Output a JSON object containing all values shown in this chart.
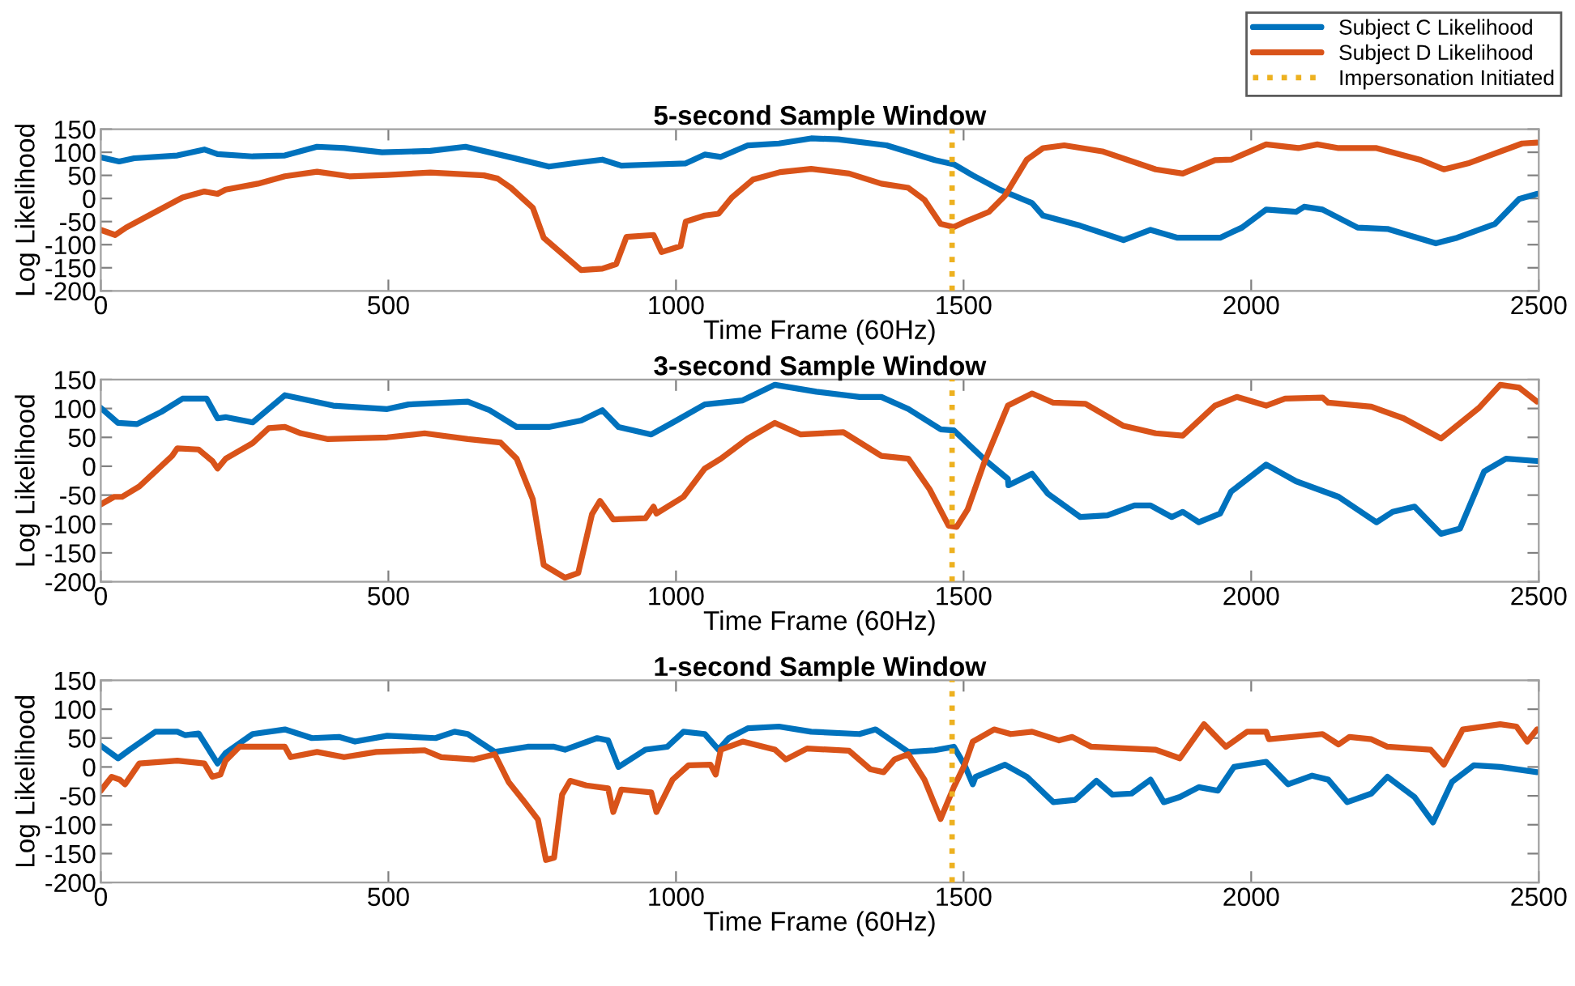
{
  "chart_data": [
    {
      "type": "line",
      "title": "5-second Sample Window",
      "xlabel": "Time Frame (60Hz)",
      "ylabel": "Log Likelihood",
      "xlim": [
        0,
        2500
      ],
      "xticks": [
        0,
        500,
        1000,
        1500,
        2000,
        2500
      ],
      "ylim": [
        -200,
        150
      ],
      "yticks": [
        -200,
        -150,
        -100,
        -50,
        0,
        50,
        100,
        150
      ],
      "grid": false,
      "legend": "top right",
      "marker": "none",
      "line_style": "solid",
      "ref_lines": [
        {
          "axis": "x",
          "value": 1480,
          "label": "Impersonation Initiated",
          "color": "#edb120",
          "line_style": "dotted"
        }
      ],
      "series": [
        {
          "name": "Subject C Likelihood",
          "color": "#0072bd",
          "x": [
            0,
            32,
            58,
            133,
            180,
            203,
            264,
            320,
            376,
            423,
            489,
            573,
            634,
            713,
            779,
            826,
            872,
            905,
            947,
            1017,
            1050,
            1078,
            1125,
            1179,
            1235,
            1282,
            1366,
            1450,
            1483,
            1516,
            1563,
            1619,
            1638,
            1703,
            1778,
            1825,
            1872,
            1946,
            1984,
            2026,
            2078,
            2092,
            2124,
            2185,
            2237,
            2321,
            2358,
            2424,
            2466,
            2497
          ],
          "values": [
            89,
            80,
            87,
            93,
            106,
            96,
            91,
            93,
            112,
            109,
            100,
            103,
            112,
            89,
            69,
            77,
            84,
            71,
            73,
            76,
            95,
            90,
            115,
            119,
            130,
            128,
            115,
            83,
            74,
            50,
            19,
            -10,
            -37,
            -59,
            -90,
            -68,
            -85,
            -85,
            -63,
            -24,
            -29,
            -18,
            -24,
            -63,
            -66,
            -97,
            -85,
            -55,
            -1,
            10
          ]
        },
        {
          "name": "Subject D Likelihood",
          "color": "#d95319",
          "x": [
            0,
            25,
            44,
            95,
            142,
            180,
            203,
            217,
            273,
            320,
            376,
            432,
            498,
            573,
            666,
            690,
            713,
            751,
            770,
            835,
            872,
            896,
            914,
            961,
            975,
            1008,
            1017,
            1050,
            1074,
            1097,
            1134,
            1181,
            1235,
            1301,
            1357,
            1404,
            1432,
            1460,
            1483,
            1507,
            1544,
            1572,
            1610,
            1638,
            1675,
            1741,
            1834,
            1881,
            1937,
            1965,
            2026,
            2082,
            2115,
            2152,
            2218,
            2293,
            2335,
            2377,
            2471,
            2497
          ],
          "values": [
            -68,
            -79,
            -63,
            -29,
            2,
            15,
            10,
            19,
            32,
            48,
            58,
            48,
            51,
            56,
            50,
            43,
            23,
            -20,
            -85,
            -155,
            -152,
            -142,
            -83,
            -79,
            -116,
            -103,
            -50,
            -37,
            -33,
            2,
            41,
            57,
            64,
            54,
            32,
            23,
            -3,
            -55,
            -62,
            -48,
            -29,
            6,
            84,
            109,
            115,
            102,
            63,
            54,
            83,
            84,
            117,
            109,
            117,
            109,
            109,
            84,
            63,
            76,
            119,
            121
          ]
        }
      ]
    },
    {
      "type": "line",
      "title": "3-second Sample Window",
      "xlabel": "Time Frame (60Hz)",
      "ylabel": "Log Likelihood",
      "xlim": [
        0,
        2500
      ],
      "xticks": [
        0,
        500,
        1000,
        1500,
        2000,
        2500
      ],
      "ylim": [
        -200,
        150
      ],
      "yticks": [
        -200,
        -150,
        -100,
        -50,
        0,
        50,
        100,
        150
      ],
      "grid": false,
      "marker": "none",
      "line_style": "solid",
      "ref_lines": [
        {
          "axis": "x",
          "value": 1480,
          "color": "#edb120",
          "line_style": "dotted"
        }
      ],
      "series": [
        {
          "color": "#0072bd",
          "x": [
            0,
            30,
            63,
            105,
            142,
            184,
            203,
            217,
            264,
            320,
            348,
            404,
            498,
            535,
            638,
            676,
            723,
            779,
            835,
            872,
            900,
            957,
            995,
            1050,
            1116,
            1172,
            1244,
            1319,
            1357,
            1404,
            1460,
            1483,
            1535,
            1577,
            1578,
            1619,
            1647,
            1703,
            1750,
            1797,
            1825,
            1862,
            1881,
            1909,
            1946,
            1965,
            2026,
            2078,
            2152,
            2218,
            2246,
            2284,
            2330,
            2363,
            2405,
            2443,
            2497
          ],
          "values": [
            101,
            75,
            73,
            94,
            117,
            117,
            83,
            85,
            76,
            123,
            117,
            105,
            99,
            107,
            112,
            97,
            68,
            68,
            79,
            97,
            68,
            55,
            76,
            107,
            114,
            141,
            129,
            120,
            120,
            99,
            64,
            62,
            13,
            -22,
            -33,
            -13,
            -48,
            -88,
            -85,
            -68,
            -68,
            -88,
            -79,
            -97,
            -82,
            -44,
            3,
            -26,
            -53,
            -97,
            -79,
            -70,
            -117,
            -108,
            -9,
            13,
            9
          ]
        },
        {
          "color": "#d95319",
          "x": [
            0,
            23,
            37,
            67,
            95,
            124,
            133,
            170,
            194,
            203,
            217,
            264,
            292,
            320,
            348,
            395,
            498,
            563,
            638,
            695,
            723,
            751,
            770,
            807,
            830,
            854,
            868,
            891,
            947,
            961,
            966,
            1013,
            1050,
            1078,
            1125,
            1172,
            1217,
            1291,
            1357,
            1404,
            1441,
            1474,
            1488,
            1507,
            1535,
            1577,
            1619,
            1656,
            1712,
            1778,
            1834,
            1881,
            1937,
            1975,
            2026,
            2059,
            2124,
            2134,
            2209,
            2265,
            2330,
            2396,
            2433,
            2466,
            2497
          ],
          "values": [
            -66,
            -53,
            -53,
            -35,
            -9,
            18,
            31,
            29,
            9,
            -4,
            13,
            40,
            66,
            68,
            57,
            47,
            50,
            57,
            47,
            41,
            13,
            -57,
            -171,
            -193,
            -185,
            -83,
            -60,
            -92,
            -90,
            -70,
            -82,
            -53,
            -4,
            13,
            48,
            75,
            55,
            59,
            18,
            13,
            -40,
            -103,
            -105,
            -75,
            4,
            105,
            126,
            110,
            108,
            70,
            57,
            53,
            105,
            120,
            105,
            117,
            119,
            110,
            103,
            83,
            48,
            101,
            141,
            136,
            112
          ]
        }
      ]
    },
    {
      "type": "line",
      "title": "1-second Sample Window",
      "xlabel": "Time Frame (60Hz)",
      "ylabel": "Log Likelihood",
      "xlim": [
        0,
        2500
      ],
      "xticks": [
        0,
        500,
        1000,
        1500,
        2000,
        2500
      ],
      "ylim": [
        -200,
        150
      ],
      "yticks": [
        -200,
        -150,
        -100,
        -50,
        0,
        50,
        100,
        150
      ],
      "grid": false,
      "marker": "none",
      "line_style": "solid",
      "ref_lines": [
        {
          "axis": "x",
          "value": 1480,
          "color": "#edb120",
          "line_style": "dotted"
        }
      ],
      "series": [
        {
          "color": "#0072bd",
          "x": [
            0,
            30,
            49,
            95,
            133,
            147,
            170,
            203,
            217,
            264,
            320,
            367,
            414,
            442,
            498,
            582,
            615,
            638,
            685,
            742,
            788,
            807,
            863,
            882,
            900,
            947,
            985,
            1013,
            1050,
            1074,
            1092,
            1125,
            1179,
            1235,
            1319,
            1347,
            1404,
            1450,
            1483,
            1502,
            1516,
            1521,
            1572,
            1610,
            1656,
            1694,
            1731,
            1759,
            1792,
            1825,
            1848,
            1876,
            1909,
            1942,
            1970,
            2026,
            2064,
            2106,
            2134,
            2167,
            2209,
            2237,
            2284,
            2316,
            2349,
            2387,
            2433,
            2497
          ],
          "values": [
            37,
            15,
            29,
            61,
            61,
            55,
            58,
            6,
            24,
            57,
            65,
            50,
            52,
            44,
            54,
            50,
            61,
            57,
            26,
            35,
            35,
            30,
            50,
            46,
            0,
            30,
            35,
            61,
            57,
            30,
            50,
            67,
            70,
            61,
            57,
            65,
            26,
            29,
            35,
            3,
            -30,
            -17,
            4,
            -17,
            -61,
            -57,
            -24,
            -48,
            -46,
            -22,
            -61,
            -52,
            -35,
            -41,
            0,
            9,
            -30,
            -15,
            -22,
            -61,
            -46,
            -17,
            -52,
            -96,
            -26,
            3,
            0,
            -9
          ]
        },
        {
          "color": "#d95319",
          "x": [
            0,
            19,
            33,
            42,
            67,
            133,
            180,
            194,
            208,
            217,
            241,
            320,
            330,
            376,
            423,
            479,
            563,
            592,
            648,
            685,
            709,
            737,
            760,
            774,
            788,
            802,
            816,
            844,
            882,
            891,
            905,
            957,
            966,
            994,
            1022,
            1060,
            1069,
            1078,
            1116,
            1172,
            1191,
            1228,
            1301,
            1338,
            1361,
            1380,
            1404,
            1432,
            1460,
            1483,
            1502,
            1516,
            1553,
            1582,
            1619,
            1666,
            1689,
            1722,
            1787,
            1834,
            1876,
            1918,
            1956,
            1993,
            2026,
            2031,
            2124,
            2152,
            2171,
            2209,
            2237,
            2312,
            2335,
            2368,
            2433,
            2461,
            2480,
            2497
          ],
          "values": [
            -41,
            -17,
            -22,
            -30,
            6,
            11,
            6,
            -17,
            -13,
            11,
            35,
            35,
            17,
            26,
            17,
            26,
            29,
            17,
            13,
            22,
            -26,
            -61,
            -91,
            -161,
            -157,
            -48,
            -24,
            -32,
            -37,
            -78,
            -39,
            -44,
            -78,
            -22,
            3,
            4,
            -13,
            30,
            44,
            30,
            13,
            32,
            28,
            -4,
            -9,
            13,
            22,
            -22,
            -90,
            -35,
            4,
            44,
            65,
            57,
            61,
            46,
            52,
            35,
            32,
            30,
            15,
            74,
            35,
            61,
            61,
            48,
            57,
            39,
            52,
            48,
            35,
            30,
            4,
            65,
            74,
            70,
            44,
            65
          ]
        }
      ]
    }
  ]
}
